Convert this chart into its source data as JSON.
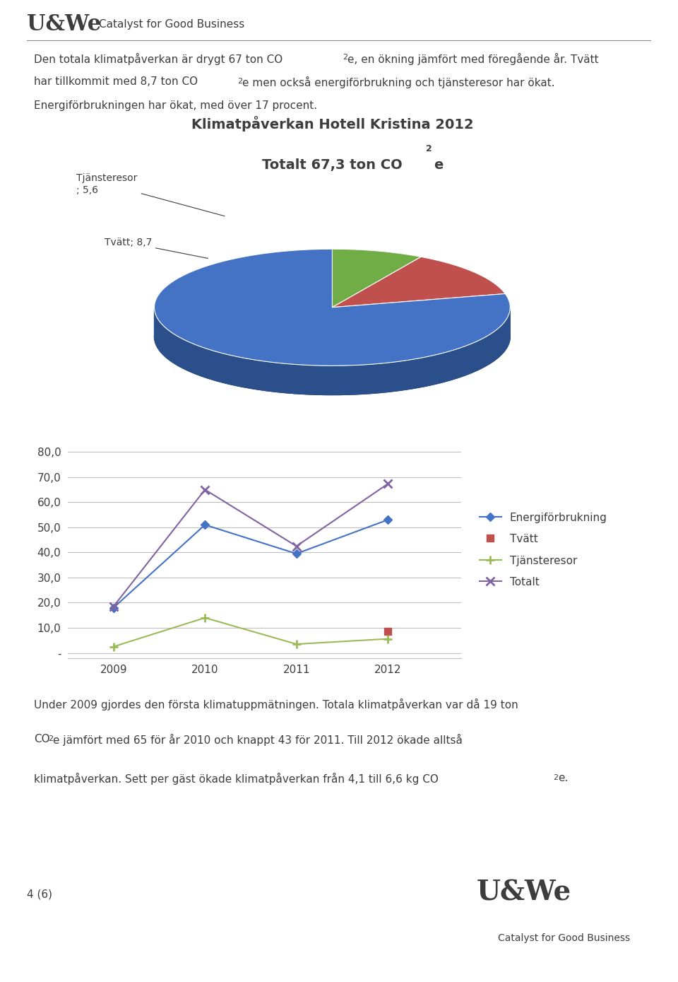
{
  "pie_title_line1": "Klimatpåverkan Hotell Kristina 2012",
  "pie_title_line2": "Totalt 67,3 ton CO₂e",
  "pie_values": [
    5.6,
    8.7,
    53.0
  ],
  "pie_colors": [
    "#70AD47",
    "#C0504D",
    "#4472C4"
  ],
  "pie_dark_colors": [
    "#4E7A32",
    "#8B3530",
    "#2A4F8A"
  ],
  "pie_blue_dark": "#1F3864",
  "line_years": [
    2009,
    2010,
    2011,
    2012
  ],
  "line_energi": [
    18.0,
    51.0,
    39.5,
    53.0
  ],
  "line_tjanst": [
    2.5,
    14.0,
    3.5,
    5.6
  ],
  "line_totalt": [
    18.5,
    65.0,
    42.5,
    67.3
  ],
  "line_colors_energi": "#4472C4",
  "line_colors_tvatt": "#C0504D",
  "line_colors_tjanst": "#9BBB59",
  "line_colors_totalt": "#8064A2",
  "legend_energi": "Energiförbrukning",
  "legend_tvatt": "Tvätt",
  "legend_tjanst": "Tjänsteresor",
  "legend_totalt": "Totalt",
  "y_tick_labels": [
    "-",
    "10,0",
    "20,0",
    "30,0",
    "40,0",
    "50,0",
    "60,0",
    "70,0",
    "80,0"
  ],
  "header_logo_text": "U&We",
  "header_sub_text": "Catalyst for Good Business",
  "page_number": "4 (6)",
  "background_color": "#FFFFFF",
  "text_color": "#3D3D3D",
  "grid_color": "#BFBFBF"
}
